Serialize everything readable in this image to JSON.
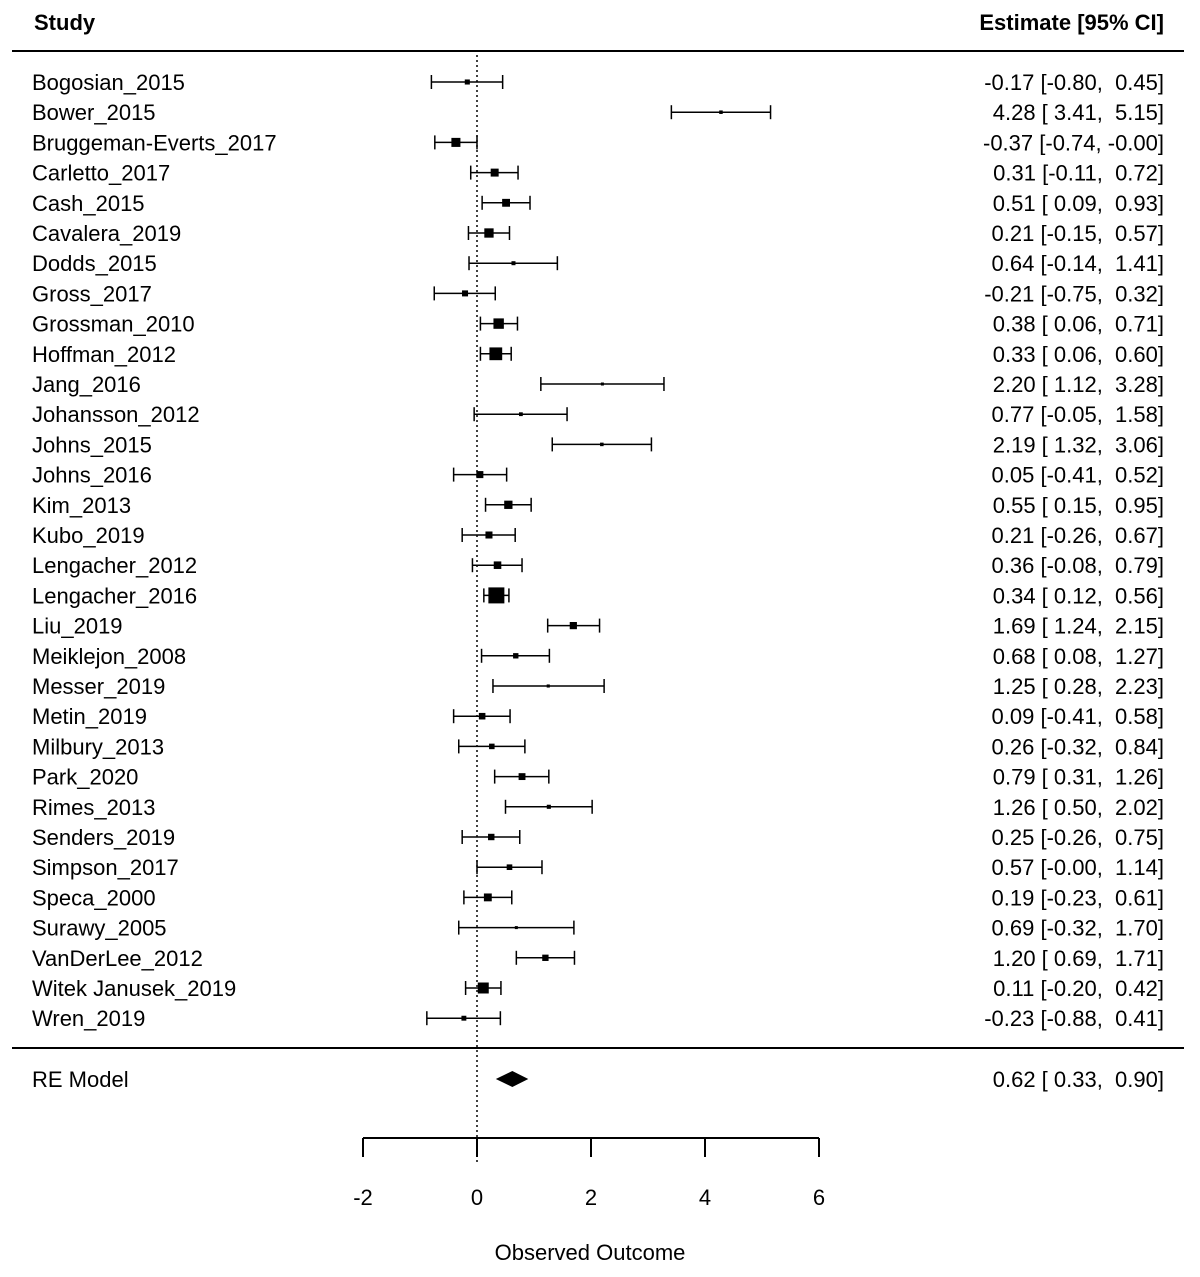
{
  "chart_data": {
    "type": "forest",
    "header": {
      "study": "Study",
      "estimate": "Estimate [95% CI]"
    },
    "xlabel": "Observed Outcome",
    "xticks": [
      -2,
      0,
      2,
      4,
      6
    ],
    "xlim": [
      -2,
      6
    ],
    "reference_line": 0,
    "studies": [
      {
        "name": "Bogosian_2015",
        "est": -0.17,
        "lo": -0.8,
        "hi": 0.45,
        "text": "-0.17 [-0.80,  0.45]"
      },
      {
        "name": "Bower_2015",
        "est": 4.28,
        "lo": 3.41,
        "hi": 5.15,
        "text": "4.28 [ 3.41,  5.15]"
      },
      {
        "name": "Bruggeman-Everts_2017",
        "est": -0.37,
        "lo": -0.74,
        "hi": -0.0,
        "text": "-0.37 [-0.74, -0.00]"
      },
      {
        "name": "Carletto_2017",
        "est": 0.31,
        "lo": -0.11,
        "hi": 0.72,
        "text": "0.31 [-0.11,  0.72]"
      },
      {
        "name": "Cash_2015",
        "est": 0.51,
        "lo": 0.09,
        "hi": 0.93,
        "text": "0.51 [ 0.09,  0.93]"
      },
      {
        "name": "Cavalera_2019",
        "est": 0.21,
        "lo": -0.15,
        "hi": 0.57,
        "text": "0.21 [-0.15,  0.57]"
      },
      {
        "name": "Dodds_2015",
        "est": 0.64,
        "lo": -0.14,
        "hi": 1.41,
        "text": "0.64 [-0.14,  1.41]"
      },
      {
        "name": "Gross_2017",
        "est": -0.21,
        "lo": -0.75,
        "hi": 0.32,
        "text": "-0.21 [-0.75,  0.32]"
      },
      {
        "name": "Grossman_2010",
        "est": 0.38,
        "lo": 0.06,
        "hi": 0.71,
        "text": "0.38 [ 0.06,  0.71]"
      },
      {
        "name": "Hoffman_2012",
        "est": 0.33,
        "lo": 0.06,
        "hi": 0.6,
        "text": "0.33 [ 0.06,  0.60]"
      },
      {
        "name": "Jang_2016",
        "est": 2.2,
        "lo": 1.12,
        "hi": 3.28,
        "text": "2.20 [ 1.12,  3.28]"
      },
      {
        "name": "Johansson_2012",
        "est": 0.77,
        "lo": -0.05,
        "hi": 1.58,
        "text": "0.77 [-0.05,  1.58]"
      },
      {
        "name": "Johns_2015",
        "est": 2.19,
        "lo": 1.32,
        "hi": 3.06,
        "text": "2.19 [ 1.32,  3.06]"
      },
      {
        "name": "Johns_2016",
        "est": 0.05,
        "lo": -0.41,
        "hi": 0.52,
        "text": "0.05 [-0.41,  0.52]"
      },
      {
        "name": "Kim_2013",
        "est": 0.55,
        "lo": 0.15,
        "hi": 0.95,
        "text": "0.55 [ 0.15,  0.95]"
      },
      {
        "name": "Kubo_2019",
        "est": 0.21,
        "lo": -0.26,
        "hi": 0.67,
        "text": "0.21 [-0.26,  0.67]"
      },
      {
        "name": "Lengacher_2012",
        "est": 0.36,
        "lo": -0.08,
        "hi": 0.79,
        "text": "0.36 [-0.08,  0.79]"
      },
      {
        "name": "Lengacher_2016",
        "est": 0.34,
        "lo": 0.12,
        "hi": 0.56,
        "text": "0.34 [ 0.12,  0.56]"
      },
      {
        "name": "Liu_2019",
        "est": 1.69,
        "lo": 1.24,
        "hi": 2.15,
        "text": "1.69 [ 1.24,  2.15]"
      },
      {
        "name": "Meiklejon_2008",
        "est": 0.68,
        "lo": 0.08,
        "hi": 1.27,
        "text": "0.68 [ 0.08,  1.27]"
      },
      {
        "name": "Messer_2019",
        "est": 1.25,
        "lo": 0.28,
        "hi": 2.23,
        "text": "1.25 [ 0.28,  2.23]"
      },
      {
        "name": "Metin_2019",
        "est": 0.09,
        "lo": -0.41,
        "hi": 0.58,
        "text": "0.09 [-0.41,  0.58]"
      },
      {
        "name": "Milbury_2013",
        "est": 0.26,
        "lo": -0.32,
        "hi": 0.84,
        "text": "0.26 [-0.32,  0.84]"
      },
      {
        "name": "Park_2020",
        "est": 0.79,
        "lo": 0.31,
        "hi": 1.26,
        "text": "0.79 [ 0.31,  1.26]"
      },
      {
        "name": "Rimes_2013",
        "est": 1.26,
        "lo": 0.5,
        "hi": 2.02,
        "text": "1.26 [ 0.50,  2.02]"
      },
      {
        "name": "Senders_2019",
        "est": 0.25,
        "lo": -0.26,
        "hi": 0.75,
        "text": "0.25 [-0.26,  0.75]"
      },
      {
        "name": "Simpson_2017",
        "est": 0.57,
        "lo": -0.0,
        "hi": 1.14,
        "text": "0.57 [-0.00,  1.14]"
      },
      {
        "name": "Speca_2000",
        "est": 0.19,
        "lo": -0.23,
        "hi": 0.61,
        "text": "0.19 [-0.23,  0.61]"
      },
      {
        "name": "Surawy_2005",
        "est": 0.69,
        "lo": -0.32,
        "hi": 1.7,
        "text": "0.69 [-0.32,  1.70]"
      },
      {
        "name": "VanDerLee_2012",
        "est": 1.2,
        "lo": 0.69,
        "hi": 1.71,
        "text": "1.20 [ 0.69,  1.71]"
      },
      {
        "name": "Witek Janusek_2019",
        "est": 0.11,
        "lo": -0.2,
        "hi": 0.42,
        "text": "0.11 [-0.20,  0.42]"
      },
      {
        "name": "Wren_2019",
        "est": -0.23,
        "lo": -0.88,
        "hi": 0.41,
        "text": "-0.23 [-0.88,  0.41]"
      }
    ],
    "summary": {
      "name": "RE Model",
      "est": 0.62,
      "lo": 0.33,
      "hi": 0.9,
      "text": "0.62 [ 0.33,  0.90]"
    }
  }
}
